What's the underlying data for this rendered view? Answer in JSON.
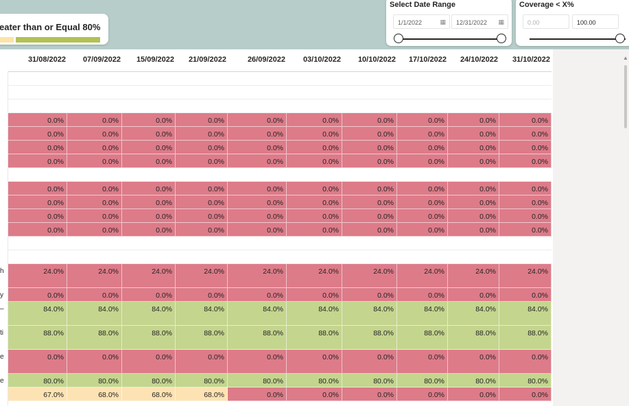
{
  "legend": {
    "text": "eater than or Equal 80%",
    "colors": {
      "below": "#fde3a7",
      "above": "#b1c254"
    }
  },
  "date_slicer": {
    "title": "Select Date Range",
    "start": "1/1/2022",
    "end": "12/31/2022"
  },
  "coverage_slicer": {
    "title": "Coverage < X%",
    "min_placeholder": "0.00",
    "max_value": "100.00"
  },
  "columns": [
    "31/08/2022",
    "07/09/2022",
    "15/09/2022",
    "21/09/2022",
    "26/09/2022",
    "03/10/2022",
    "10/10/2022",
    "17/10/2022",
    "24/10/2022",
    "31/10/2022"
  ],
  "row_labels": {
    "r9": "h",
    "r10": "y",
    "r11": "–",
    "r12": "ti",
    "r13": "e",
    "r14": "e"
  },
  "colors": {
    "red": "#dd7b89",
    "green": "#c4d58e",
    "yellow": "#fde3b3"
  },
  "rows": [
    {
      "type": "blank"
    },
    {
      "type": "blank"
    },
    {
      "type": "blank"
    },
    {
      "type": "data",
      "color": "red",
      "values": [
        "0.0%",
        "0.0%",
        "0.0%",
        "0.0%",
        "0.0%",
        "0.0%",
        "0.0%",
        "0.0%",
        "0.0%",
        "0.0%"
      ]
    },
    {
      "type": "data",
      "color": "red",
      "values": [
        "0.0%",
        "0.0%",
        "0.0%",
        "0.0%",
        "0.0%",
        "0.0%",
        "0.0%",
        "0.0%",
        "0.0%",
        "0.0%"
      ]
    },
    {
      "type": "data",
      "color": "red",
      "values": [
        "0.0%",
        "0.0%",
        "0.0%",
        "0.0%",
        "0.0%",
        "0.0%",
        "0.0%",
        "0.0%",
        "0.0%",
        "0.0%"
      ]
    },
    {
      "type": "data",
      "color": "red",
      "values": [
        "0.0%",
        "0.0%",
        "0.0%",
        "0.0%",
        "0.0%",
        "0.0%",
        "0.0%",
        "0.0%",
        "0.0%",
        "0.0%"
      ]
    },
    {
      "type": "blank"
    },
    {
      "type": "data",
      "color": "red",
      "values": [
        "0.0%",
        "0.0%",
        "0.0%",
        "0.0%",
        "0.0%",
        "0.0%",
        "0.0%",
        "0.0%",
        "0.0%",
        "0.0%"
      ]
    },
    {
      "type": "data",
      "color": "red",
      "values": [
        "0.0%",
        "0.0%",
        "0.0%",
        "0.0%",
        "0.0%",
        "0.0%",
        "0.0%",
        "0.0%",
        "0.0%",
        "0.0%"
      ]
    },
    {
      "type": "data",
      "color": "red",
      "values": [
        "0.0%",
        "0.0%",
        "0.0%",
        "0.0%",
        "0.0%",
        "0.0%",
        "0.0%",
        "0.0%",
        "0.0%",
        "0.0%"
      ]
    },
    {
      "type": "data",
      "color": "red",
      "values": [
        "0.0%",
        "0.0%",
        "0.0%",
        "0.0%",
        "0.0%",
        "0.0%",
        "0.0%",
        "0.0%",
        "0.0%",
        "0.0%"
      ]
    },
    {
      "type": "blank"
    },
    {
      "type": "blank"
    },
    {
      "type": "data",
      "color": "red",
      "tall": true,
      "label": "h",
      "values": [
        "24.0%",
        "24.0%",
        "24.0%",
        "24.0%",
        "24.0%",
        "24.0%",
        "24.0%",
        "24.0%",
        "24.0%",
        "24.0%"
      ]
    },
    {
      "type": "data",
      "color": "red",
      "label": "y",
      "values": [
        "0.0%",
        "0.0%",
        "0.0%",
        "0.0%",
        "0.0%",
        "0.0%",
        "0.0%",
        "0.0%",
        "0.0%",
        "0.0%"
      ]
    },
    {
      "type": "data",
      "color": "green",
      "tall": true,
      "label": "–",
      "values": [
        "84.0%",
        "84.0%",
        "84.0%",
        "84.0%",
        "84.0%",
        "84.0%",
        "84.0%",
        "84.0%",
        "84.0%",
        "84.0%"
      ]
    },
    {
      "type": "data",
      "color": "green",
      "tall": true,
      "label": "ti",
      "values": [
        "88.0%",
        "88.0%",
        "88.0%",
        "88.0%",
        "88.0%",
        "88.0%",
        "88.0%",
        "88.0%",
        "88.0%",
        "88.0%"
      ]
    },
    {
      "type": "data",
      "color": "red",
      "tall": true,
      "label": "e",
      "values": [
        "0.0%",
        "0.0%",
        "0.0%",
        "0.0%",
        "0.0%",
        "0.0%",
        "0.0%",
        "0.0%",
        "0.0%",
        "0.0%"
      ]
    },
    {
      "type": "data",
      "color": "green",
      "label": "e",
      "values": [
        "80.0%",
        "80.0%",
        "80.0%",
        "80.0%",
        "80.0%",
        "80.0%",
        "80.0%",
        "80.0%",
        "80.0%",
        "80.0%"
      ]
    },
    {
      "type": "data",
      "color": "mixed",
      "cell_colors": [
        "yellow",
        "yellow",
        "yellow",
        "yellow",
        "red",
        "red",
        "red",
        "red",
        "red",
        "red"
      ],
      "values": [
        "67.0%",
        "68.0%",
        "68.0%",
        "68.0%",
        "0.0%",
        "0.0%",
        "0.0%",
        "0.0%",
        "0.0%",
        "0.0%"
      ]
    }
  ]
}
